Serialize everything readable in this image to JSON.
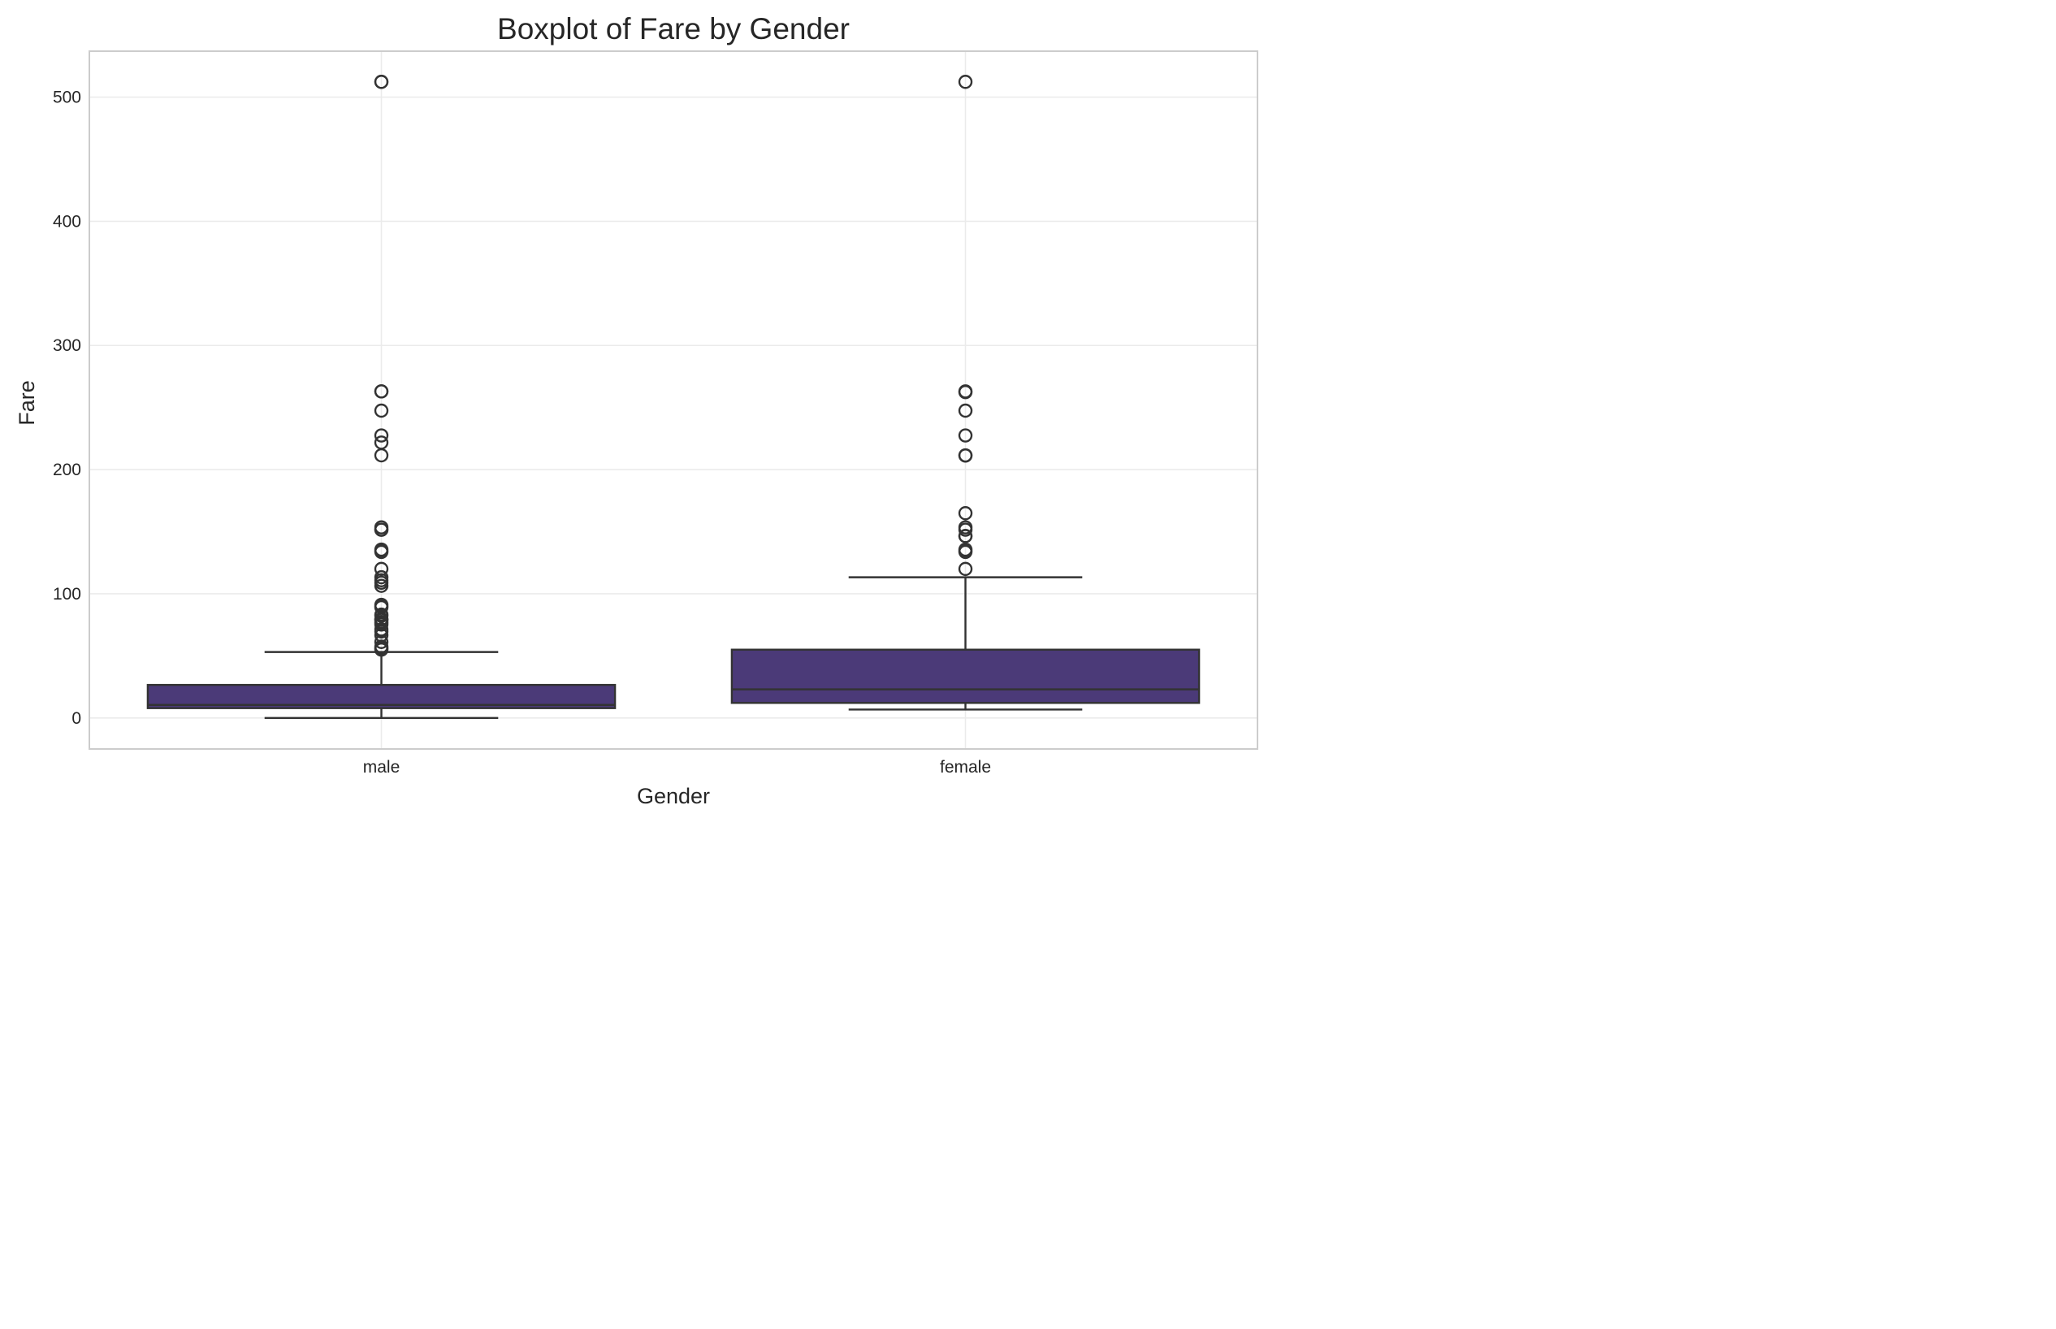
{
  "chart_data": {
    "type": "box",
    "title": "Boxplot of Fare by Gender",
    "xlabel": "Gender",
    "ylabel": "Fare",
    "ylim": [
      -25,
      537
    ],
    "yticks": [
      0,
      100,
      200,
      300,
      400,
      500
    ],
    "grid": true,
    "box_color": "#4b3a78",
    "line_color": "#333333",
    "categories": [
      "male",
      "female"
    ],
    "boxes": [
      {
        "name": "male",
        "whisker_low": 0,
        "q1": 7.9,
        "median": 10.5,
        "q3": 26.6,
        "whisker_high": 53.1,
        "fliers": [
          512.3,
          512.3,
          263,
          263,
          247.5,
          227.5,
          221.8,
          211.5,
          153.5,
          151.6,
          151.6,
          135.6,
          134.5,
          133.7,
          120,
          113.3,
          110.9,
          108.9,
          106.4,
          91.1,
          90,
          89.1,
          83.2,
          82.2,
          79.6,
          79.2,
          78.9,
          77.3,
          76.3,
          75.2,
          71.3,
          69.6,
          66.6,
          61.2,
          57.5,
          56.5,
          55.9,
          55
        ]
      },
      {
        "name": "female",
        "whisker_low": 6.75,
        "q1": 12.1,
        "median": 23,
        "q3": 55,
        "whisker_high": 113.3,
        "fliers": [
          512.3,
          263,
          262.4,
          247.5,
          227.5,
          211.5,
          211.3,
          164.9,
          153.5,
          151.6,
          146.5,
          146.5,
          135.6,
          134.5,
          133.7,
          120
        ]
      }
    ]
  }
}
